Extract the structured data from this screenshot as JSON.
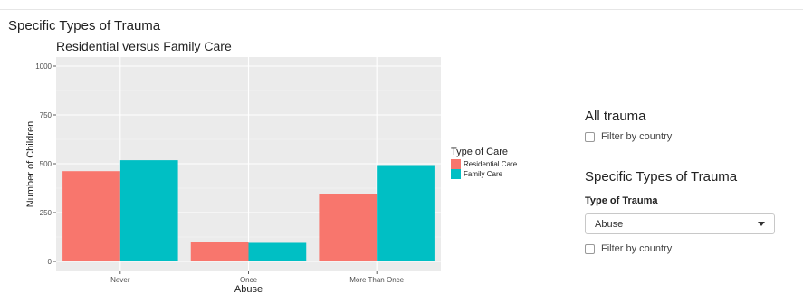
{
  "page": {
    "section_title": "Specific Types of Trauma"
  },
  "chart_data": {
    "type": "bar",
    "title": "Residential versus Family Care",
    "xlabel": "Abuse",
    "ylabel": "Number of Children",
    "categories": [
      "Never",
      "Once",
      "More Than Once"
    ],
    "series": [
      {
        "name": "Residential Care",
        "values": [
          462,
          100,
          343
        ],
        "color": "#F8766D"
      },
      {
        "name": "Family Care",
        "values": [
          518,
          95,
          493
        ],
        "color": "#00BFC4"
      }
    ],
    "ylim": [
      0,
      1000
    ],
    "yticks": [
      0,
      250,
      500,
      750,
      1000
    ],
    "legend_title": "Type of Care",
    "legend_position": "right",
    "grid": true,
    "panel_background": "#EBEBEB"
  },
  "sidebar": {
    "all_trauma": {
      "heading": "All trauma",
      "filter_label": "Filter by country"
    },
    "specific": {
      "heading": "Specific Types of Trauma",
      "select_label": "Type of Trauma",
      "select_value": "Abuse",
      "filter_label": "Filter by country",
      "caret_icon": "chevron-down-icon"
    }
  }
}
